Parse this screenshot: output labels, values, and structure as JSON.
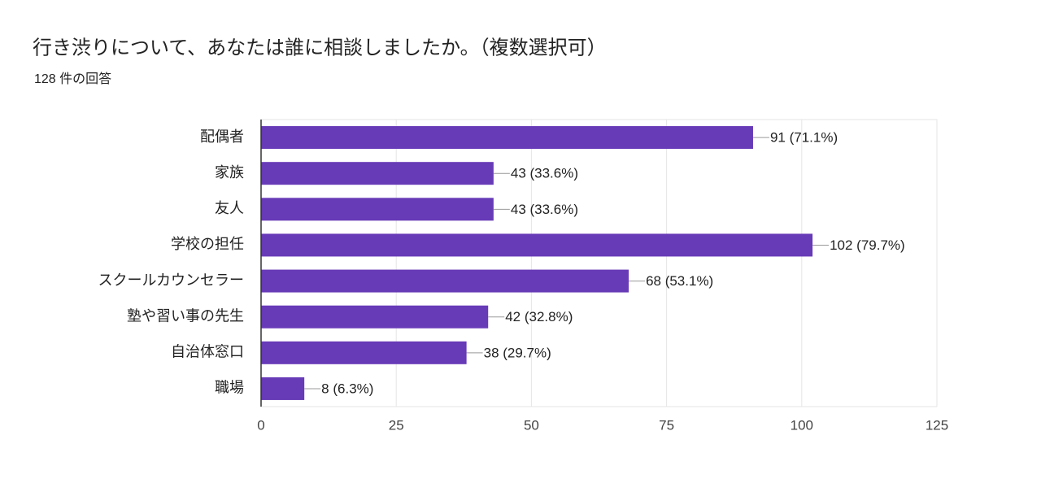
{
  "chart_data": {
    "type": "hbar",
    "title": "行き渋りについて、あなたは誰に相談しましたか。（複数選択可）",
    "subtitle": "128 件の回答",
    "categories": [
      "配偶者",
      "家族",
      "友人",
      "学校の担任",
      "スクールカウンセラー",
      "塾や習い事の先生",
      "自治体窓口",
      "職場"
    ],
    "values": [
      91,
      43,
      43,
      102,
      68,
      42,
      38,
      8
    ],
    "value_labels": [
      "91 (71.1%)",
      "43 (33.6%)",
      "43 (33.6%)",
      "102 (79.7%)",
      "68 (53.1%)",
      "42 (32.8%)",
      "38 (29.7%)",
      "8 (6.3%)"
    ],
    "color": "#673ab7",
    "xlim": [
      0,
      125
    ],
    "xticks": [
      0,
      25,
      50,
      75,
      100,
      125
    ],
    "grid": true
  }
}
